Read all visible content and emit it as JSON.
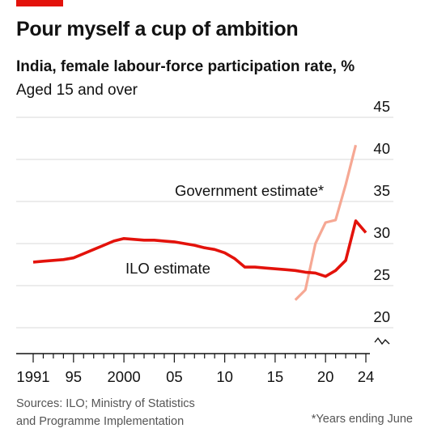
{
  "header": {
    "title": "Pour myself a cup of ambition",
    "subtitle": "India, female labour-force participation rate, %",
    "subnote": "Aged 15 and over"
  },
  "footer": {
    "source_line1": "Sources: ILO; Ministry of Statistics",
    "source_line2": "and Programme Implementation",
    "footnote": "*Years ending June"
  },
  "colors": {
    "accent": "#e3120b",
    "ilo": "#e3120b",
    "government": "#f6a894",
    "grid": "#d9d9d9",
    "axis": "#121212"
  },
  "chart_data": {
    "type": "line",
    "title": "Pour myself a cup of ambition",
    "subtitle": "India, female labour-force participation rate, %",
    "xlim": [
      1990.5,
      2024.5
    ],
    "ylim": [
      18,
      45
    ],
    "y_axis_broken": true,
    "y_ticks": [
      20,
      25,
      30,
      35,
      40,
      45
    ],
    "y_tick_labels": [
      "20",
      "25",
      "30",
      "35",
      "40",
      "45"
    ],
    "x_ticks": [
      1991,
      1995,
      2000,
      2005,
      2010,
      2015,
      2020,
      2024
    ],
    "x_tick_labels": [
      "1991",
      "95",
      "2000",
      "05",
      "10",
      "15",
      "20",
      "24"
    ],
    "grid": true,
    "series": [
      {
        "name": "ILO estimate",
        "color": "#e3120b",
        "x": [
          1991,
          1992,
          1993,
          1994,
          1995,
          1996,
          1997,
          1998,
          1999,
          2000,
          2001,
          2002,
          2003,
          2004,
          2005,
          2006,
          2007,
          2008,
          2009,
          2010,
          2011,
          2012,
          2013,
          2014,
          2015,
          2016,
          2017,
          2018,
          2019,
          2020,
          2021,
          2022,
          2023,
          2024
        ],
        "y": [
          27.8,
          27.9,
          28.0,
          28.1,
          28.3,
          28.8,
          29.3,
          29.8,
          30.3,
          30.6,
          30.5,
          30.4,
          30.4,
          30.3,
          30.2,
          30.0,
          29.8,
          29.5,
          29.3,
          28.9,
          28.2,
          27.2,
          27.2,
          27.1,
          27.0,
          26.9,
          26.8,
          26.6,
          26.5,
          26.1,
          26.8,
          28.0,
          32.7,
          31.3
        ]
      },
      {
        "name": "Government estimate*",
        "color": "#f6a894",
        "x": [
          2017,
          2018,
          2019,
          2020,
          2021,
          2022,
          2023
        ],
        "y": [
          23.3,
          24.5,
          30.0,
          32.5,
          32.8,
          37.0,
          41.7
        ]
      }
    ]
  }
}
